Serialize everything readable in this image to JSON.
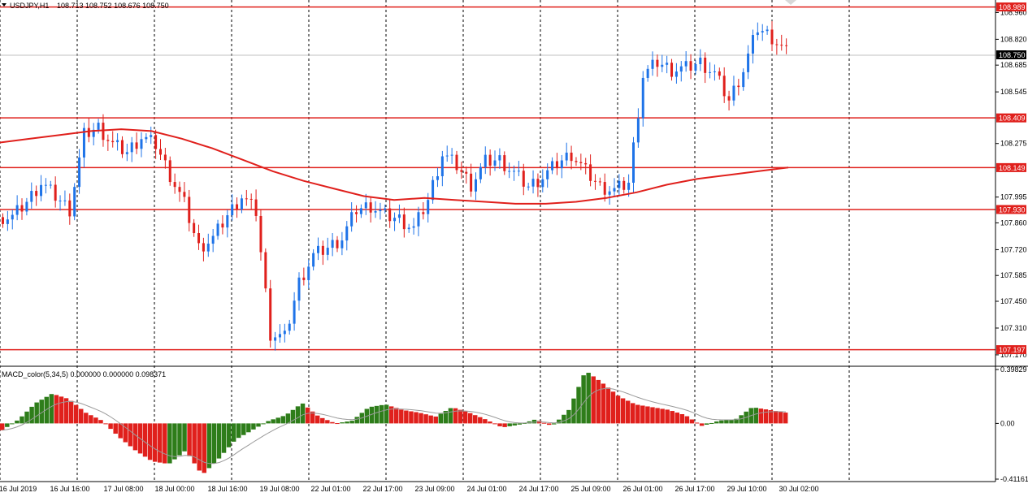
{
  "header": {
    "symbol": "USDJPY,H1",
    "ohlc": "108.713 108.752 108.676 108.750"
  },
  "macd_header": "MACD_color(5,34,5) 0.000000 0.000000 0.098371",
  "colors": {
    "bull": "#1e73e8",
    "bear": "#e0201c",
    "level": "#e0201c",
    "ma": "#e0201c",
    "hist_pos": "#2e7d1a",
    "hist_neg": "#e0201c",
    "signal": "#9a9a9a",
    "grid": "#000000",
    "price_line": "#c0c0c0"
  },
  "price_scale": {
    "ticks": [
      "108.960",
      "108.820",
      "108.685",
      "108.545",
      "108.275",
      "107.995",
      "107.860",
      "107.720",
      "107.585",
      "107.450",
      "107.310",
      "107.170"
    ],
    "current_price": "108.750",
    "tags": [
      "108.989",
      "108.409",
      "108.149",
      "107.930",
      "107.197"
    ]
  },
  "macd_scale": {
    "ticks": [
      "0.39829",
      "0.00",
      "-0.41161"
    ]
  },
  "time_labels": [
    "16 Jul 2019",
    "16 Jul 16:00",
    "17 Jul 08:00",
    "18 Jul 00:00",
    "18 Jul 16:00",
    "19 Jul 08:00",
    "22 Jul 01:00",
    "22 Jul 17:00",
    "23 Jul 09:00",
    "24 Jul 01:00",
    "24 Jul 17:00",
    "25 Jul 09:00",
    "26 Jul 01:00",
    "26 Jul 17:00",
    "29 Jul 10:00",
    "30 Jul 02:00"
  ],
  "chart_data": {
    "type": "candlestick",
    "instrument": "USDJPY",
    "timeframe": "H1",
    "ylim": [
      107.14,
      109.0
    ],
    "horizontal_levels": [
      108.989,
      108.409,
      108.149,
      107.93,
      107.197
    ],
    "moving_average_line": [
      108.28,
      108.3,
      108.32,
      108.34,
      108.35,
      108.34,
      108.3,
      108.25,
      108.19,
      108.13,
      108.08,
      108.04,
      108.0,
      107.98,
      107.99,
      107.98,
      107.97,
      107.96,
      107.96,
      107.97,
      107.99,
      108.02,
      108.06,
      108.09,
      108.11,
      108.13,
      108.15
    ],
    "price_series": [
      107.89,
      107.97,
      108.07,
      108.0,
      107.93,
      108.32,
      108.36,
      108.27,
      108.23,
      108.31,
      108.27,
      108.11,
      107.96,
      107.73,
      107.78,
      107.9,
      108.0,
      107.92,
      107.28,
      107.26,
      107.55,
      107.69,
      107.73,
      107.78,
      107.93,
      107.95,
      107.9,
      107.88,
      107.83,
      107.98,
      108.22,
      108.16,
      108.06,
      108.18,
      108.19,
      108.12,
      108.05,
      108.1,
      108.17,
      108.22,
      108.13,
      108.05,
      108.03,
      108.07,
      108.63,
      108.7,
      108.66,
      108.67,
      108.7,
      108.64,
      108.5,
      108.66,
      108.88,
      108.83,
      108.75
    ],
    "macd_histogram": [
      -0.05,
      0.03,
      0.15,
      0.22,
      0.18,
      0.08,
      0.02,
      -0.1,
      -0.2,
      -0.28,
      -0.3,
      -0.2,
      -0.38,
      -0.26,
      -0.12,
      -0.05,
      0.02,
      0.06,
      0.15,
      0.05,
      0.0,
      0.02,
      0.12,
      0.14,
      0.1,
      0.08,
      0.05,
      0.12,
      0.08,
      0.03,
      -0.03,
      -0.01,
      0.03,
      -0.02,
      0.1,
      0.39,
      0.3,
      0.2,
      0.14,
      0.12,
      0.1,
      0.06,
      -0.02,
      0.02,
      0.03,
      0.12,
      0.1,
      0.08
    ],
    "macd_ylim": [
      -0.41161,
      0.39829
    ]
  }
}
